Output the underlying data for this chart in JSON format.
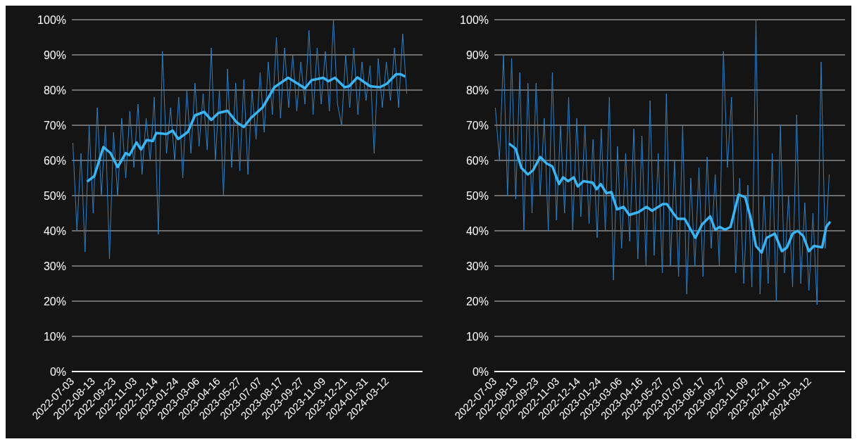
{
  "chart_data": [
    {
      "type": "line",
      "xlim": [
        "2022-07-01",
        "2024-05-20"
      ],
      "xticks": [
        "2022-07-03",
        "2022-08-13",
        "2022-09-23",
        "2022-11-03",
        "2022-12-14",
        "2023-01-24",
        "2023-03-06",
        "2023-04-16",
        "2023-05-27",
        "2023-07-07",
        "2023-08-17",
        "2023-09-27",
        "2023-11-09",
        "2023-12-21",
        "2024-01-31",
        "2024-03-12"
      ],
      "ylim": [
        0,
        100
      ],
      "yticks": [
        {
          "value": 0,
          "label": "0%"
        },
        {
          "value": 10,
          "label": "10%"
        },
        {
          "value": 20,
          "label": "20%"
        },
        {
          "value": 30,
          "label": "30%"
        },
        {
          "value": 40,
          "label": "40%"
        },
        {
          "value": 50,
          "label": "50%"
        },
        {
          "value": 60,
          "label": "60%"
        },
        {
          "value": 70,
          "label": "70%"
        },
        {
          "value": 80,
          "label": "80%"
        },
        {
          "value": 90,
          "label": "90%"
        },
        {
          "value": 100,
          "label": "100%"
        }
      ],
      "grid": "y",
      "legend": false,
      "series": [
        {
          "color": "#2f80c4",
          "x": [
            "2022-07-03",
            "2022-07-11",
            "2022-07-19",
            "2022-07-27",
            "2022-08-04",
            "2022-08-12",
            "2022-08-20",
            "2022-08-28",
            "2022-09-05",
            "2022-09-13",
            "2022-09-21",
            "2022-09-29",
            "2022-10-07",
            "2022-10-15",
            "2022-10-23",
            "2022-10-31",
            "2022-11-08",
            "2022-11-16",
            "2022-11-24",
            "2022-12-02",
            "2022-12-10",
            "2022-12-18",
            "2022-12-26",
            "2023-01-03",
            "2023-01-11",
            "2023-01-19",
            "2023-01-27",
            "2023-02-04",
            "2023-02-12",
            "2023-02-20",
            "2023-02-28",
            "2023-03-08",
            "2023-03-16",
            "2023-03-24",
            "2023-04-01",
            "2023-04-09",
            "2023-04-17",
            "2023-04-25",
            "2023-05-03",
            "2023-05-11",
            "2023-05-19",
            "2023-05-27",
            "2023-06-04",
            "2023-06-12",
            "2023-06-20",
            "2023-06-28",
            "2023-07-06",
            "2023-07-14",
            "2023-07-22",
            "2023-07-30",
            "2023-08-07",
            "2023-08-15",
            "2023-08-23",
            "2023-08-31",
            "2023-09-08",
            "2023-09-16",
            "2023-09-24",
            "2023-10-02",
            "2023-10-10",
            "2023-10-18",
            "2023-10-26",
            "2023-11-03",
            "2023-11-11",
            "2023-11-19",
            "2023-11-27",
            "2023-12-05",
            "2023-12-13",
            "2023-12-21",
            "2023-12-29",
            "2024-01-06",
            "2024-01-14",
            "2024-01-22",
            "2024-01-30",
            "2024-02-07",
            "2024-02-15",
            "2024-02-23",
            "2024-03-02",
            "2024-03-10",
            "2024-03-18",
            "2024-03-26",
            "2024-04-03",
            "2024-04-11",
            "2024-04-19"
          ],
          "values": [
            65,
            40,
            62,
            34,
            70,
            45,
            75,
            50,
            70,
            32,
            68,
            50,
            72,
            55,
            74,
            58,
            76,
            56,
            72,
            60,
            78,
            39,
            91,
            62,
            75,
            60,
            78,
            55,
            80,
            62,
            82,
            64,
            79,
            63,
            92,
            60,
            80,
            50,
            86,
            58,
            82,
            57,
            83,
            56,
            80,
            66,
            85,
            68,
            88,
            73,
            95,
            72,
            92,
            75,
            90,
            74,
            88,
            76,
            97,
            73,
            92,
            76,
            91,
            74,
            100,
            76,
            70,
            90,
            75,
            92,
            73,
            88,
            77,
            87,
            62,
            89,
            75,
            88,
            77,
            92,
            75,
            96,
            79
          ]
        },
        {
          "color": "#3ab4f2",
          "x": [
            "2022-07-31",
            "2022-08-14",
            "2022-09-01",
            "2022-09-15",
            "2022-09-29",
            "2022-10-15",
            "2022-10-22",
            "2022-11-05",
            "2022-11-14",
            "2022-11-25",
            "2022-12-07",
            "2022-12-14",
            "2023-01-03",
            "2023-01-15",
            "2023-01-26",
            "2023-02-14",
            "2023-02-28",
            "2023-03-18",
            "2023-04-01",
            "2023-04-15",
            "2023-05-03",
            "2023-05-21",
            "2023-06-04",
            "2023-06-18",
            "2023-07-11",
            "2023-08-03",
            "2023-08-30",
            "2023-09-18",
            "2023-10-02",
            "2023-10-15",
            "2023-11-07",
            "2023-11-17",
            "2023-11-30",
            "2023-12-19",
            "2023-12-28",
            "2024-01-13",
            "2024-02-07",
            "2024-02-26",
            "2024-03-11",
            "2024-03-29",
            "2024-04-07",
            "2024-04-16"
          ],
          "values": [
            54,
            55.5,
            63.8,
            62.1,
            58.1,
            62.1,
            61.5,
            65.1,
            63.1,
            65.8,
            65.5,
            67.8,
            67.5,
            68.5,
            66.1,
            68.1,
            72.8,
            73.8,
            71.5,
            73.5,
            74.1,
            70.8,
            69.5,
            72.1,
            75.1,
            80.8,
            83.5,
            81.8,
            80.5,
            82.8,
            83.5,
            82.5,
            83.5,
            80.8,
            81.1,
            83.6,
            81.1,
            80.8,
            81.8,
            84.5,
            84.5,
            83.8
          ]
        }
      ]
    },
    {
      "type": "line",
      "xlim": [
        "2022-07-01",
        "2024-05-20"
      ],
      "xticks": [
        "2022-07-03",
        "2022-08-13",
        "2022-09-23",
        "2022-11-03",
        "2022-12-14",
        "2023-01-24",
        "2023-03-06",
        "2023-04-16",
        "2023-05-27",
        "2023-07-07",
        "2023-08-17",
        "2023-09-27",
        "2023-11-09",
        "2023-12-21",
        "2024-01-31",
        "2024-03-12"
      ],
      "ylim": [
        0,
        100
      ],
      "yticks": [
        {
          "value": 0,
          "label": "0%"
        },
        {
          "value": 10,
          "label": "10%"
        },
        {
          "value": 20,
          "label": "20%"
        },
        {
          "value": 30,
          "label": "30%"
        },
        {
          "value": 40,
          "label": "40%"
        },
        {
          "value": 50,
          "label": "50%"
        },
        {
          "value": 60,
          "label": "60%"
        },
        {
          "value": 70,
          "label": "70%"
        },
        {
          "value": 80,
          "label": "80%"
        },
        {
          "value": 90,
          "label": "90%"
        },
        {
          "value": 100,
          "label": "100%"
        }
      ],
      "grid": "y",
      "legend": false,
      "series": [
        {
          "color": "#2f80c4",
          "x": [
            "2022-07-03",
            "2022-07-11",
            "2022-07-19",
            "2022-07-27",
            "2022-08-04",
            "2022-08-12",
            "2022-08-20",
            "2022-08-28",
            "2022-09-05",
            "2022-09-13",
            "2022-09-21",
            "2022-09-29",
            "2022-10-07",
            "2022-10-15",
            "2022-10-23",
            "2022-10-31",
            "2022-11-08",
            "2022-11-16",
            "2022-11-24",
            "2022-12-02",
            "2022-12-10",
            "2022-12-18",
            "2022-12-26",
            "2023-01-03",
            "2023-01-11",
            "2023-01-19",
            "2023-01-27",
            "2023-02-04",
            "2023-02-12",
            "2023-02-20",
            "2023-02-28",
            "2023-03-08",
            "2023-03-16",
            "2023-03-24",
            "2023-04-01",
            "2023-04-09",
            "2023-04-17",
            "2023-04-25",
            "2023-05-03",
            "2023-05-11",
            "2023-05-19",
            "2023-05-27",
            "2023-06-04",
            "2023-06-12",
            "2023-06-20",
            "2023-06-28",
            "2023-07-06",
            "2023-07-14",
            "2023-07-22",
            "2023-07-30",
            "2023-08-07",
            "2023-08-15",
            "2023-08-23",
            "2023-08-31",
            "2023-09-08",
            "2023-09-16",
            "2023-09-24",
            "2023-10-02",
            "2023-10-10",
            "2023-10-18",
            "2023-10-26",
            "2023-11-03",
            "2023-11-11",
            "2023-11-19",
            "2023-11-27",
            "2023-12-05",
            "2023-12-13",
            "2023-12-21",
            "2023-12-29",
            "2024-01-06",
            "2024-01-14",
            "2024-01-22",
            "2024-01-30",
            "2024-02-07",
            "2024-02-15",
            "2024-02-23",
            "2024-03-02",
            "2024-03-10",
            "2024-03-18",
            "2024-03-26",
            "2024-04-03",
            "2024-04-11",
            "2024-04-19"
          ],
          "values": [
            75,
            60,
            90,
            50,
            89,
            49,
            85,
            40,
            82,
            45,
            82,
            50,
            72,
            40,
            85,
            43,
            70,
            45,
            78,
            40,
            72,
            44,
            70,
            42,
            66,
            38,
            69,
            40,
            78,
            26,
            64,
            35,
            62,
            37,
            69,
            32,
            67,
            30,
            77,
            33,
            62,
            28,
            79,
            30,
            60,
            27,
            70,
            22,
            55,
            30,
            58,
            27,
            61,
            35,
            56,
            30,
            91,
            58,
            78,
            28,
            55,
            25,
            53,
            24,
            100,
            22,
            50,
            25,
            62,
            20,
            70,
            28,
            50,
            24,
            73,
            25,
            48,
            23,
            45,
            19,
            88,
            35,
            56
          ]
        },
        {
          "color": "#3ab4f2",
          "x": [
            "2022-07-30",
            "2022-08-12",
            "2022-08-23",
            "2022-09-05",
            "2022-09-15",
            "2022-09-29",
            "2022-10-12",
            "2022-10-23",
            "2022-11-05",
            "2022-11-13",
            "2022-11-23",
            "2022-12-04",
            "2022-12-12",
            "2022-12-23",
            "2023-01-10",
            "2023-01-18",
            "2023-01-26",
            "2023-02-06",
            "2023-02-16",
            "2023-02-27",
            "2023-03-12",
            "2023-03-23",
            "2023-04-10",
            "2023-04-26",
            "2023-05-07",
            "2023-05-28",
            "2023-06-05",
            "2023-06-18",
            "2023-06-26",
            "2023-07-10",
            "2023-07-31",
            "2023-08-13",
            "2023-08-29",
            "2023-09-08",
            "2023-09-17",
            "2023-09-27",
            "2023-10-08",
            "2023-10-24",
            "2023-11-06",
            "2023-11-17",
            "2023-11-27",
            "2023-12-08",
            "2023-12-18",
            "2024-01-03",
            "2024-01-17",
            "2024-01-27",
            "2024-02-07",
            "2024-02-17",
            "2024-02-28",
            "2024-03-10",
            "2024-03-20",
            "2024-04-05",
            "2024-04-13",
            "2024-04-21"
          ],
          "values": [
            64.8,
            63.3,
            57.9,
            56,
            57.2,
            61,
            59.1,
            58.3,
            53.3,
            55.2,
            54.1,
            55.2,
            52.6,
            54.1,
            53.7,
            51.8,
            53.3,
            50.7,
            51,
            46.1,
            46.8,
            44.5,
            45.3,
            46.8,
            45.7,
            47.6,
            47.6,
            44.9,
            43.4,
            43.4,
            38,
            41.8,
            44.1,
            40.3,
            41.1,
            40.3,
            41.1,
            50.3,
            49.5,
            43.4,
            35.7,
            33.8,
            38,
            39.2,
            34.2,
            35.3,
            39.2,
            40,
            38.5,
            34.2,
            35.7,
            35.3,
            41.1,
            42.6
          ]
        }
      ]
    }
  ]
}
